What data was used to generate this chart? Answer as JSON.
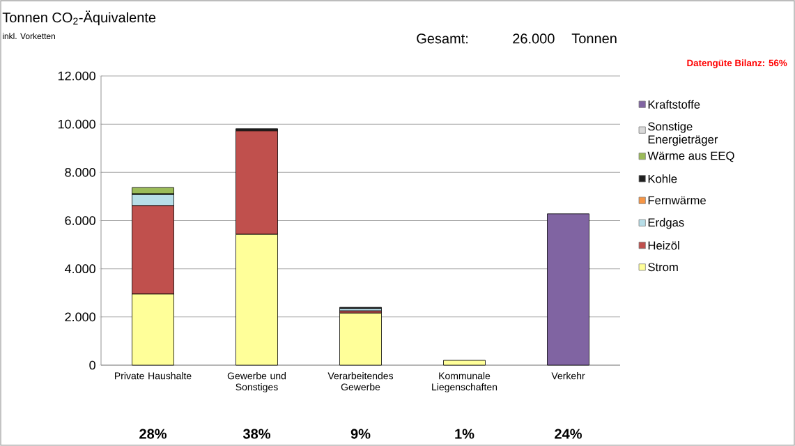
{
  "chart_data": {
    "type": "bar",
    "stacked": true,
    "title": "Tonnen CO$_{2}$-Äquivalente",
    "subtitle": "inkl. Vorketten",
    "categories": [
      "Private Haushalte",
      "Gewerbe und Sonstiges",
      "Verarbeitendes Gewerbe",
      "Kommunale Liegenschaften",
      "Verkehr"
    ],
    "series": [
      {
        "name": "Strom",
        "color": "#ffff99",
        "values": [
          2950,
          5430,
          2160,
          200,
          0
        ]
      },
      {
        "name": "Heizöl",
        "color": "#c0504d",
        "values": [
          3670,
          4290,
          90,
          0,
          0
        ]
      },
      {
        "name": "Erdgas",
        "color": "#b7dee8",
        "values": [
          460,
          0,
          100,
          0,
          0
        ]
      },
      {
        "name": "Fernwärme",
        "color": "#f79646",
        "values": [
          0,
          0,
          0,
          0,
          0
        ]
      },
      {
        "name": "Kohle",
        "color": "#1f1f1f",
        "values": [
          30,
          90,
          50,
          null,
          0
        ]
      },
      {
        "name": "Wärme aus EEQ",
        "color": "#9bbb59",
        "values": [
          260,
          0,
          0,
          0,
          0
        ]
      },
      {
        "name": "Sonstige Energieträger",
        "color": "#d9d9d9",
        "values": [
          0,
          0,
          0,
          0,
          0
        ]
      },
      {
        "name": "Kraftstoffe",
        "color": "#8064a2",
        "values": [
          0,
          0,
          0,
          0,
          6280
        ]
      }
    ],
    "ylim": [
      0,
      12000
    ],
    "yticks": [
      {
        "value": 0,
        "label": "0"
      },
      {
        "value": 2000,
        "label": "2.000"
      },
      {
        "value": 4000,
        "label": "4.000"
      },
      {
        "value": 6000,
        "label": "6.000"
      },
      {
        "value": 8000,
        "label": "8.000"
      },
      {
        "value": 10000,
        "label": "10.000"
      },
      {
        "value": 12000,
        "label": "12.000"
      }
    ],
    "grid": "y",
    "legend": "right",
    "annotations": [
      "Gesamt:",
      "26.000",
      "Tonnen",
      "Datengüte Bilanz: 56%",
      "28%",
      "38%",
      "9%",
      "1%",
      "24%"
    ]
  }
}
